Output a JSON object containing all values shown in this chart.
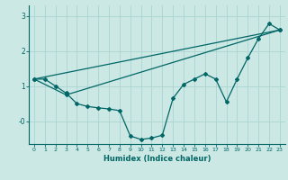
{
  "xlabel": "Humidex (Indice chaleur)",
  "background_color": "#cce8e4",
  "line_color": "#006666",
  "grid_color": "#aad4d0",
  "xlim": [
    -0.5,
    23.5
  ],
  "ylim": [
    -0.65,
    3.3
  ],
  "line1_x": [
    0,
    1,
    2,
    3,
    4,
    5,
    6,
    7,
    8,
    9,
    10,
    11,
    12,
    13,
    14,
    15,
    16,
    17,
    18,
    19,
    20,
    21,
    22,
    23
  ],
  "line1_y": [
    1.2,
    1.2,
    1.0,
    0.8,
    0.5,
    0.42,
    0.38,
    0.35,
    0.3,
    -0.42,
    -0.52,
    -0.48,
    -0.4,
    0.65,
    1.05,
    1.2,
    1.35,
    1.2,
    0.55,
    1.2,
    1.8,
    2.35,
    2.78,
    2.6
  ],
  "line2_x": [
    0,
    3,
    23
  ],
  "line2_y": [
    1.2,
    0.75,
    2.6
  ],
  "line3_x": [
    0,
    23
  ],
  "line3_y": [
    1.2,
    2.6
  ],
  "yticks": [
    0,
    1,
    2,
    3
  ],
  "ytick_labels": [
    "-0",
    "1",
    "2",
    "3"
  ],
  "xticks": [
    0,
    1,
    2,
    3,
    4,
    5,
    6,
    7,
    8,
    9,
    10,
    11,
    12,
    13,
    14,
    15,
    16,
    17,
    18,
    19,
    20,
    21,
    22,
    23
  ]
}
